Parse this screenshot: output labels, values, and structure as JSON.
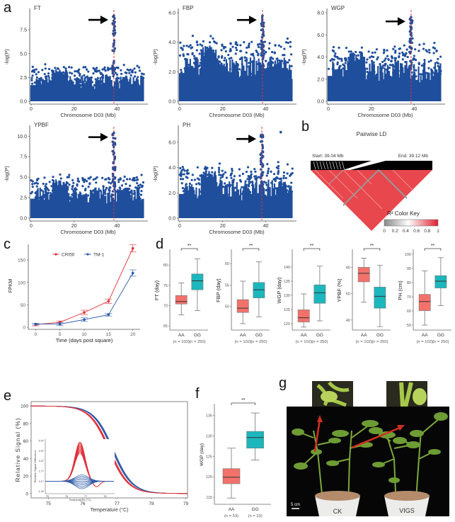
{
  "panel_labels": {
    "a": "a",
    "b": "b",
    "c": "c",
    "d": "d",
    "e": "e",
    "f": "f",
    "g": "g"
  },
  "colors": {
    "manhattan_points": "#1f4e9c",
    "threshold_line": "#e0303a",
    "red_series": "#e0303a",
    "blue_series": "#2f5aa8",
    "box_AA": "#f2726b",
    "box_GG": "#1bb7bd",
    "ld_red": "#e8474d"
  },
  "chart_data": [
    {
      "id": "a-FT",
      "type": "scatter",
      "subtype": "manhattan",
      "title": "FT",
      "xlabel": "Chromosome D03 (Mb)",
      "ylabel": "-log(P)",
      "xlim": [
        0,
        53
      ],
      "ylim": [
        0,
        9.3
      ],
      "xticks": [
        "0",
        "20",
        "40"
      ],
      "yticks": [
        "0.0",
        "2.5",
        "5.0",
        "7.5"
      ],
      "ytick_values": [
        0,
        2.5,
        5,
        7.5
      ],
      "peak_x_mb": 38.5,
      "peak_max": 9.0,
      "background_max": 4.0,
      "annotation": "arrow pointing to peak at ~38.5 Mb"
    },
    {
      "id": "a-FBP",
      "type": "scatter",
      "subtype": "manhattan",
      "title": "FBP",
      "xlabel": "Chromosome D03 (Mb)",
      "ylabel": "-log(P)",
      "xlim": [
        0,
        53
      ],
      "ylim": [
        0,
        6.0
      ],
      "xticks": [
        "0",
        "20",
        "40"
      ],
      "yticks": [
        "0.0",
        "2.0",
        "4.0",
        "6.0"
      ],
      "ytick_values": [
        0,
        2,
        4,
        6
      ],
      "peak_x_mb": 38.5,
      "peak_max": 5.8,
      "background_max": 4.5,
      "annotation": "arrow pointing to peak at ~38.5 Mb"
    },
    {
      "id": "a-WGP",
      "type": "scatter",
      "subtype": "manhattan",
      "title": "WGP",
      "xlabel": "Chromosome D03 (Mb)",
      "ylabel": "-log(P)",
      "xlim": [
        0,
        53
      ],
      "ylim": [
        0,
        8.0
      ],
      "xticks": [
        "0",
        "20",
        "40"
      ],
      "yticks": [
        "0.0",
        "2.0",
        "4.0",
        "6.0",
        "8.0"
      ],
      "ytick_values": [
        0,
        2,
        4,
        6,
        8
      ],
      "peak_x_mb": 38.5,
      "peak_max": 7.6,
      "background_max": 5.4,
      "annotation": "arrow pointing to peak at ~38.5 Mb"
    },
    {
      "id": "a-YPBF",
      "type": "scatter",
      "subtype": "manhattan",
      "title": "YPBF",
      "xlabel": "Chromosome D03 (Mb)",
      "ylabel": "-log(P)",
      "xlim": [
        0,
        53
      ],
      "ylim": [
        0,
        10.8
      ],
      "xticks": [
        "0",
        "20",
        "40"
      ],
      "yticks": [
        "0.0",
        "2.5",
        "5.0",
        "7.5",
        "10.0"
      ],
      "ytick_values": [
        0,
        2.5,
        5,
        7.5,
        10
      ],
      "peak_x_mb": 38.5,
      "peak_max": 10.4,
      "background_max": 5.6,
      "annotation": "arrow pointing to peak at ~38.5 Mb"
    },
    {
      "id": "a-PH",
      "type": "scatter",
      "subtype": "manhattan",
      "title": "PH",
      "xlabel": "Chromosome D03 (Mb)",
      "ylabel": "-log(P)",
      "xlim": [
        0,
        53
      ],
      "ylim": [
        0,
        7.0
      ],
      "xticks": [
        "0",
        "20",
        "40"
      ],
      "yticks": [
        "0.0",
        "2.0",
        "4.0",
        "6.0"
      ],
      "ytick_values": [
        0,
        2,
        4,
        6
      ],
      "peak_x_mb": 38.2,
      "peak_max": 6.6,
      "background_max": 4.5,
      "outlier": {
        "x_mb": 47,
        "y": 6.8
      },
      "annotation": "arrow pointing to peak at ~38 Mb"
    },
    {
      "id": "b",
      "type": "heatmap",
      "subtype": "ld-triangle",
      "title": "Pairwise LD",
      "start_label": "Start: 39.04 Mb",
      "end_label": "End: 39.12 Mb",
      "color_key_title": "R² Color Key",
      "color_key_ticks": [
        "0",
        "0.2",
        "0.4",
        "0.6",
        "0.8",
        "1"
      ],
      "color_key_range": [
        0,
        1
      ]
    },
    {
      "id": "c",
      "type": "line",
      "xlabel": "Time (days post square)",
      "ylabel": "FPKM",
      "x": [
        0,
        5,
        10,
        15,
        20
      ],
      "xticks": [
        "0",
        "5",
        "10",
        "15",
        "20"
      ],
      "yticks": [
        "0",
        "50",
        "100",
        "150"
      ],
      "ylim": [
        0,
        185
      ],
      "xlim": [
        -1.5,
        21.5
      ],
      "series": [
        {
          "name": "CRI50",
          "values": [
            6,
            11,
            33,
            58,
            176
          ],
          "errors": [
            3,
            3,
            5,
            5,
            8
          ]
        },
        {
          "name": "TM-1",
          "values": [
            7,
            7,
            17,
            28,
            121
          ],
          "errors": [
            2,
            3,
            4,
            3,
            7
          ]
        }
      ],
      "legend": "top"
    },
    {
      "id": "d",
      "type": "box",
      "groups": [
        "AA",
        "GG"
      ],
      "group_n": [
        "(n = 102)",
        "(n = 250)"
      ],
      "significance": "**",
      "panels": [
        {
          "ylabel": "FT (day)",
          "yticks": [
            "65",
            "70",
            "75",
            "80"
          ],
          "ytick_values": [
            65,
            70,
            75,
            80
          ],
          "ylim": [
            64.5,
            83
          ],
          "AA": {
            "min": 67.7,
            "q1": 70.4,
            "median": 71.0,
            "q3": 72.5,
            "max": 75.6
          },
          "GG": {
            "min": 68.8,
            "q1": 73.9,
            "median": 76.1,
            "q3": 77.8,
            "max": 81.5
          }
        },
        {
          "ylabel": "FBP (day)",
          "yticks": [
            "50",
            "55",
            "60"
          ],
          "ytick_values": [
            50,
            55,
            60
          ],
          "ylim": [
            45,
            62.5
          ],
          "AA": {
            "min": 46,
            "q1": 48.6,
            "median": 49.6,
            "q3": 51.6,
            "max": 55.9
          },
          "GG": {
            "min": 47.6,
            "q1": 52.0,
            "median": 53.9,
            "q3": 55.6,
            "max": 60.4
          }
        },
        {
          "ylabel": "WGP (day)",
          "yticks": [
            "120",
            "125",
            "130",
            "135",
            "140"
          ],
          "ytick_values": [
            120,
            125,
            130,
            135,
            140
          ],
          "ylim": [
            118.5,
            145
          ],
          "AA": {
            "min": 118.8,
            "q1": 120.6,
            "median": 122.1,
            "q3": 124.9,
            "max": 130.5
          },
          "GG": {
            "min": 121,
            "q1": 127.2,
            "median": 130.9,
            "q3": 133.7,
            "max": 140.3
          }
        },
        {
          "ylabel": "YPBF (%)",
          "yticks": [
            "40",
            "60",
            "80"
          ],
          "ytick_values": [
            40,
            60,
            80
          ],
          "ylim": [
            34,
            91
          ],
          "AA": {
            "min": 53.5,
            "q1": 69,
            "median": 75.5,
            "q3": 80,
            "max": 87
          },
          "GG": {
            "min": 35,
            "q1": 49,
            "median": 58,
            "q3": 65,
            "max": 81.5
          }
        },
        {
          "ylabel": "PH (cm)",
          "yticks": [
            "50",
            "60",
            "70",
            "80",
            "90",
            "100"
          ],
          "ytick_values": [
            50,
            60,
            70,
            80,
            90,
            100
          ],
          "ylim": [
            48,
            101
          ],
          "AA": {
            "min": 50,
            "q1": 60.2,
            "median": 66.6,
            "q3": 71.7,
            "max": 88.2
          },
          "GG": {
            "min": 63.8,
            "q1": 76.2,
            "median": 81.0,
            "q3": 84.9,
            "max": 97.6
          }
        }
      ]
    },
    {
      "id": "e",
      "type": "line",
      "subtype": "melting-curve",
      "xlabel": "Temperature (°C)",
      "ylabel": "Relative Signal (%)",
      "xticks": [
        "75",
        "76",
        "77",
        "78",
        "79"
      ],
      "xlim": [
        74.5,
        79.05
      ],
      "yticks": [
        "0",
        "20",
        "40",
        "60",
        "80",
        "100"
      ],
      "ylim": [
        -5,
        105
      ],
      "series": [
        {
          "name": "red genotype",
          "midpoint_C": 76.75
        },
        {
          "name": "blue genotype",
          "midpoint_C": 76.85
        }
      ],
      "inset": {
        "xlabel": "Temperature (°C)",
        "ylabel": "Relative Signal Difference",
        "xticks": [
          "75",
          "76",
          "77",
          "78"
        ],
        "yticks": [
          "-1.42",
          "0.17",
          "1.77",
          "3.37",
          "4.97",
          "6.57"
        ],
        "ylim": [
          -1.8,
          6.8
        ],
        "red_peak": {
          "x": 76.7,
          "y_range": [
            4.4,
            6.2
          ]
        },
        "blue_band": {
          "y_range": [
            -1.2,
            1.0
          ]
        }
      }
    },
    {
      "id": "f",
      "type": "box",
      "ylabel": "WGP (day)",
      "yticks": [
        "115",
        "120",
        "125",
        "130",
        "135"
      ],
      "ytick_values": [
        115,
        120,
        125,
        130,
        135
      ],
      "ylim": [
        113.8,
        137
      ],
      "groups": [
        "AA",
        "GG"
      ],
      "group_n": [
        "(n = 53)",
        "(n = 23)"
      ],
      "significance": "**",
      "AA": {
        "min": 114.8,
        "q1": 118.3,
        "median": 119.9,
        "q3": 122,
        "max": 127
      },
      "GG": {
        "min": 124.1,
        "q1": 127,
        "median": 129.6,
        "q3": 131.1,
        "max": 135.6
      }
    }
  ],
  "g": {
    "left_label": "CK",
    "right_label": "VIGS",
    "scale_bar": "5 cm"
  }
}
